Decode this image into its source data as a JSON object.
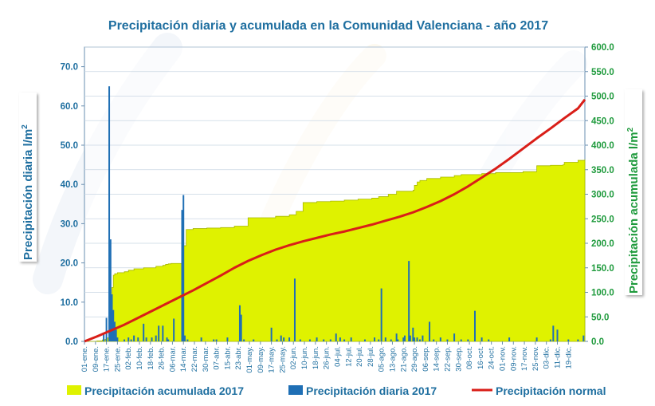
{
  "chart_data": {
    "type": "bar",
    "title": "Precipitación diaria y acumulada en la Comunidad Valenciana - año 2017",
    "ylabel_left": "Precipitación diaria l/m",
    "ylabel_right": "Precipitación acumulada l/m",
    "ylabel_superscript": "2",
    "ylim_left": [
      0,
      75
    ],
    "ylim_right": [
      0,
      600
    ],
    "yticks_left": [
      "0.0",
      "10.0",
      "20.0",
      "30.0",
      "40.0",
      "50.0",
      "60.0",
      "70.0"
    ],
    "yticks_right": [
      "0.0",
      "50.0",
      "100.0",
      "150.0",
      "200.0",
      "250.0",
      "300.0",
      "350.0",
      "400.0",
      "450.0",
      "500.0",
      "550.0",
      "600.0"
    ],
    "xlim_days": [
      1,
      365
    ],
    "xtick_labels": [
      "01-ene.",
      "09-ene.",
      "17-ene.",
      "25-ene.",
      "02-feb.",
      "10-feb.",
      "18-feb.",
      "26-feb.",
      "06-mar.",
      "14-mar.",
      "22-mar.",
      "30-mar.",
      "07-abr.",
      "15-abr.",
      "23-abr.",
      "01-may.",
      "09-may.",
      "17-may.",
      "25-may.",
      "02-jun.",
      "10-jun.",
      "18-jun.",
      "26-jun.",
      "04-jul.",
      "12-jul.",
      "20-jul.",
      "28-jul.",
      "05-ago.",
      "13-ago.",
      "21-ago.",
      "29-ago.",
      "06-sep.",
      "14-sep.",
      "22-sep.",
      "30-sep.",
      "08-oct.",
      "16-oct.",
      "24-oct.",
      "01-nov.",
      "09-nov.",
      "17-nov.",
      "25-nov.",
      "03-dic.",
      "11-dic.",
      "19-dic."
    ],
    "grid": true,
    "legend_position": "bottom",
    "colors": {
      "daily": "#1f6fb5",
      "accumulated": "#dff200",
      "normal": "#d91e18",
      "left_axis_text": "#1f6fa0",
      "right_axis_text": "#1e9a3c"
    },
    "series": [
      {
        "name": "Precipitación acumulada 2017",
        "type": "area",
        "x": [
          1,
          10,
          14,
          16,
          17,
          19,
          20,
          21,
          22,
          23,
          25,
          30,
          33,
          37,
          44,
          53,
          58,
          60,
          62,
          64,
          72,
          73,
          75,
          80,
          90,
          100,
          110,
          120,
          140,
          150,
          155,
          160,
          170,
          180,
          190,
          200,
          210,
          215,
          222,
          228,
          240,
          241,
          243,
          245,
          250,
          260,
          270,
          275,
          290,
          300,
          320,
          330,
          340,
          349,
          350,
          360,
          365
        ],
        "values": [
          0,
          1,
          3,
          4,
          7,
          38,
          70,
          110,
          135,
          138,
          140,
          142,
          145,
          148,
          150,
          153,
          155,
          157,
          158,
          159,
          160,
          195,
          228,
          230,
          231,
          232,
          235,
          252,
          255,
          258,
          265,
          283,
          285,
          286,
          288,
          290,
          292,
          295,
          300,
          306,
          308,
          318,
          325,
          328,
          332,
          335,
          338,
          340,
          342,
          344,
          346,
          358,
          359,
          360,
          365,
          369,
          371
        ]
      },
      {
        "name": "Precipitación diaria 2017",
        "type": "bar",
        "x": [
          15,
          17,
          19,
          20,
          21,
          22,
          23,
          24,
          25,
          30,
          33,
          35,
          37,
          40,
          44,
          46,
          50,
          53,
          55,
          58,
          61,
          62,
          66,
          72,
          73,
          74,
          76,
          86,
          95,
          97,
          105,
          114,
          115,
          117,
          124,
          137,
          141,
          144,
          146,
          150,
          154,
          158,
          165,
          170,
          175,
          180,
          184,
          187,
          190,
          195,
          205,
          212,
          215,
          217,
          220,
          224,
          228,
          229,
          233,
          234,
          237,
          238,
          240,
          241,
          243,
          245,
          247,
          252,
          255,
          260,
          265,
          270,
          275,
          280,
          285,
          290,
          295,
          310,
          330,
          340,
          342,
          345,
          353,
          360,
          364
        ],
        "values": [
          2,
          6,
          65,
          26,
          12,
          8,
          5,
          3,
          1,
          0.5,
          1,
          0.5,
          1.5,
          1,
          4.5,
          1,
          1,
          1.5,
          4,
          4,
          1,
          0.5,
          5.8,
          33.5,
          37.3,
          1.5,
          0.5,
          1,
          0.5,
          0.5,
          1,
          9.2,
          6.8,
          0.5,
          0.5,
          3.5,
          0.5,
          1.5,
          1,
          1,
          16,
          0.5,
          0.5,
          1,
          0.5,
          0.5,
          2,
          1,
          0.5,
          1,
          0.5,
          1,
          0.5,
          13.5,
          1,
          0.5,
          2,
          0.5,
          1,
          1.5,
          20.5,
          1.5,
          3.5,
          1,
          1,
          0.5,
          1.5,
          5,
          0.5,
          1,
          0.5,
          2,
          0.5,
          0.5,
          7.8,
          1,
          0.5,
          1,
          1,
          0.5,
          4,
          3,
          0.5,
          0.5,
          1.5
        ]
      },
      {
        "name": "Precipitación normal",
        "type": "line",
        "x": [
          1,
          10,
          20,
          30,
          40,
          50,
          60,
          70,
          80,
          90,
          100,
          110,
          120,
          130,
          140,
          150,
          160,
          170,
          180,
          190,
          200,
          210,
          220,
          230,
          240,
          250,
          260,
          270,
          280,
          290,
          300,
          310,
          320,
          330,
          340,
          350,
          360,
          365
        ],
        "values": [
          0,
          10,
          22,
          34,
          48,
          62,
          76,
          90,
          104,
          119,
          134,
          150,
          164,
          176,
          187,
          196,
          204,
          211,
          218,
          224,
          231,
          238,
          246,
          254,
          263,
          274,
          286,
          300,
          316,
          334,
          352,
          372,
          393,
          414,
          434,
          455,
          475,
          493
        ]
      }
    ]
  }
}
